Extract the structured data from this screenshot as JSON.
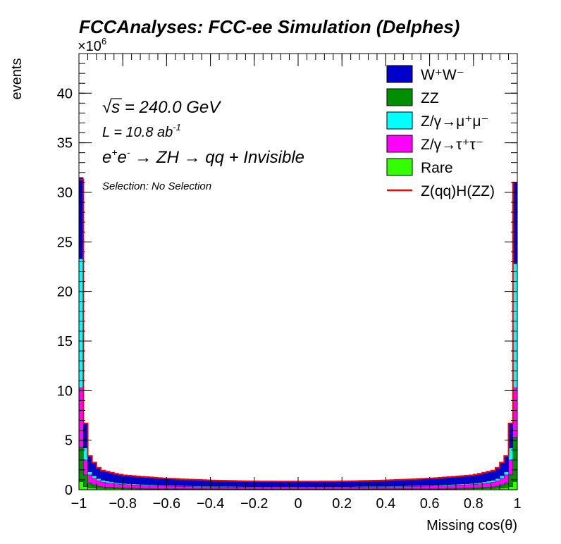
{
  "chart_data": {
    "type": "histogram",
    "title": "FCCAnalyses: FCC-ee Simulation (Delphes)",
    "xlabel": "Missing cos(θ)",
    "ylabel": "events",
    "y_multiplier": "×10^6",
    "xlim": [
      -1,
      1
    ],
    "ylim": [
      0,
      44
    ],
    "x_ticks": [
      "−1",
      "−0.8",
      "−0.6",
      "−0.4",
      "−0.2",
      "0",
      "0.2",
      "0.4",
      "0.6",
      "0.8",
      "1"
    ],
    "x_tick_values": [
      -1,
      -0.8,
      -0.6,
      -0.4,
      -0.2,
      0,
      0.2,
      0.4,
      0.6,
      0.8,
      1
    ],
    "y_ticks": [
      "0",
      "5",
      "10",
      "15",
      "20",
      "25",
      "30",
      "35",
      "40"
    ],
    "y_tick_values": [
      0,
      5,
      10,
      15,
      20,
      25,
      30,
      35,
      40
    ],
    "annotations": {
      "energy_prefix": "√",
      "energy_s": "s",
      "energy_rest": " = 240.0 GeV",
      "lumi_base": "L = 10.8 ab",
      "lumi_exp": "-1",
      "process_e1": "e",
      "process_plus": "+",
      "process_e2": "e",
      "process_minus": "-",
      "process_rest": " → ZH → qq + Invisible",
      "selection": "Selection: No Selection"
    },
    "legend": {
      "position": "top-right",
      "entries": [
        {
          "key": "ww",
          "label": "W⁺W⁻",
          "color": "#0000cc",
          "kind": "fill"
        },
        {
          "key": "zz",
          "label": "ZZ",
          "color": "#008f00",
          "kind": "fill"
        },
        {
          "key": "mumu",
          "label": "Z/γ→μ⁺μ⁻",
          "color": "#00ffff",
          "kind": "fill"
        },
        {
          "key": "tautau",
          "label": "Z/γ→τ⁺τ⁻",
          "color": "#ff00ff",
          "kind": "fill"
        },
        {
          "key": "rare",
          "label": "Rare",
          "color": "#33ff00",
          "kind": "fill"
        },
        {
          "key": "signal",
          "label": "Z(qq)H(ZZ)",
          "color": "#ff0000",
          "kind": "line"
        }
      ]
    },
    "stack_order_bottom_to_top": [
      "rare",
      "zz",
      "tautau",
      "mumu",
      "ww"
    ],
    "bins": {
      "x_centers": [
        -0.99,
        -0.97,
        -0.95,
        -0.9,
        -0.8,
        -0.6,
        -0.4,
        -0.2,
        0.0,
        0.2,
        0.4,
        0.6,
        0.8,
        0.9,
        0.95,
        0.97,
        0.99
      ],
      "rare": [
        0.8,
        0.3,
        0.2,
        0.12,
        0.08,
        0.05,
        0.04,
        0.03,
        0.03,
        0.03,
        0.04,
        0.05,
        0.08,
        0.12,
        0.2,
        0.3,
        0.8
      ],
      "zz": [
        3.5,
        1.2,
        0.5,
        0.18,
        0.1,
        0.06,
        0.05,
        0.04,
        0.04,
        0.04,
        0.05,
        0.06,
        0.1,
        0.18,
        0.5,
        1.2,
        4.5
      ],
      "tautau": [
        6.0,
        1.5,
        0.8,
        0.5,
        0.35,
        0.25,
        0.2,
        0.18,
        0.17,
        0.18,
        0.2,
        0.25,
        0.35,
        0.5,
        0.8,
        1.5,
        5.0
      ],
      "mumu": [
        13.0,
        1.2,
        0.3,
        0.2,
        0.1,
        0.08,
        0.06,
        0.05,
        0.05,
        0.05,
        0.06,
        0.08,
        0.1,
        0.2,
        0.3,
        1.2,
        12.5
      ],
      "ww": [
        8.2,
        2.5,
        1.6,
        1.0,
        0.85,
        0.7,
        0.6,
        0.55,
        0.54,
        0.55,
        0.6,
        0.7,
        0.85,
        1.0,
        1.6,
        2.5,
        8.2
      ],
      "signal": [
        31.3,
        6.7,
        3.4,
        2.0,
        1.48,
        1.14,
        0.95,
        0.85,
        0.83,
        0.85,
        0.95,
        1.14,
        1.48,
        2.0,
        3.4,
        6.7,
        31.0
      ]
    }
  }
}
